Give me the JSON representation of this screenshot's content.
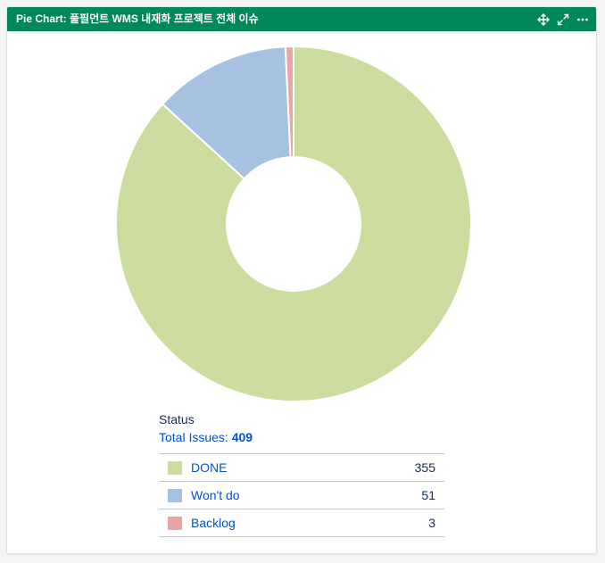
{
  "gadget": {
    "title": "Pie Chart: 풀필먼트 WMS 내재화 프로젝트 전체 이슈",
    "icons": [
      "move-icon",
      "expand-icon",
      "more-icon"
    ]
  },
  "status": {
    "label": "Status",
    "total_label": "Total Issues: ",
    "total_value": "409"
  },
  "colors": {
    "header": "#00875a",
    "link": "#0052cc"
  },
  "chart_data": {
    "type": "pie",
    "title": "",
    "total": 409,
    "slices": [
      {
        "name": "DONE",
        "value": 355,
        "count": "355",
        "color": "#cbdc9e"
      },
      {
        "name": "Won't do",
        "value": 51,
        "count": "51",
        "color": "#a7c1e1"
      },
      {
        "name": "Backlog",
        "value": 3,
        "count": "3",
        "color": "#e7a5a3"
      }
    ]
  }
}
